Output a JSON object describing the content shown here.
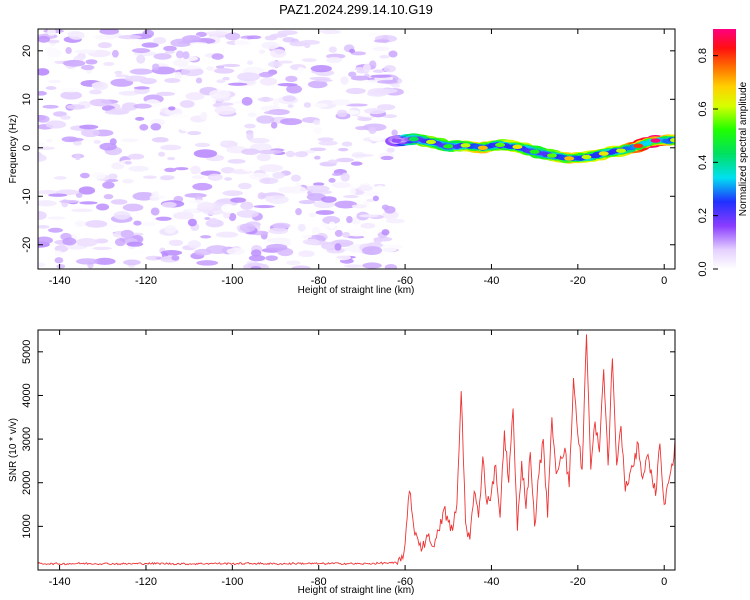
{
  "figure": {
    "title": "PAZ1.2024.299.14.10.G19"
  },
  "chart_data": [
    {
      "type": "heatmap",
      "title": "PAZ1.2024.299.14.10.G19",
      "xlabel": "Height of straight line (km)",
      "ylabel": "Frequency (Hz)",
      "xlim": [
        -145,
        2.5
      ],
      "ylim": [
        -25,
        24.5
      ],
      "xticks": [
        -140,
        -120,
        -100,
        -80,
        -60,
        -40,
        -20,
        0
      ],
      "yticks": [
        -20,
        -10,
        0,
        10,
        20
      ],
      "colorbar": {
        "label": "Normalized spectral amplitude",
        "range": [
          0,
          0.9
        ],
        "ticks": [
          0.0,
          0.2,
          0.4,
          0.6,
          0.8
        ],
        "tick_labels": [
          "0.0",
          "0.2",
          "0.4",
          "0.6",
          "0.8"
        ],
        "colormap": "rainbow (white → violet → blue → cyan → green → yellow → orange → red → magenta)"
      },
      "regions": [
        {
          "name": "noise",
          "x_range": [
            -145,
            -62
          ],
          "frequency_range": [
            -25,
            24.5
          ],
          "amplitude_range": [
            0.0,
            0.12
          ]
        }
      ],
      "ridge": {
        "x": [
          -62,
          -58,
          -54,
          -50,
          -46,
          -42,
          -38,
          -34,
          -30,
          -26,
          -22,
          -18,
          -14,
          -10,
          -6,
          -2,
          2.5
        ],
        "frequency": [
          1.5,
          1.8,
          1.2,
          0.3,
          0.5,
          0.0,
          0.6,
          0.2,
          -0.8,
          -1.6,
          -2.2,
          -1.9,
          -1.2,
          -0.6,
          0.4,
          1.5,
          1.6
        ],
        "amplitude": [
          0.15,
          0.45,
          0.6,
          0.5,
          0.6,
          0.7,
          0.55,
          0.65,
          0.5,
          0.55,
          0.7,
          0.6,
          0.65,
          0.6,
          0.8,
          0.9,
          0.6
        ]
      }
    },
    {
      "type": "line",
      "xlabel": "Height of straight line (km)",
      "ylabel": "SNR (10 * v/v)",
      "xlim": [
        -145,
        2.5
      ],
      "ylim": [
        0,
        5500
      ],
      "xticks": [
        -140,
        -120,
        -100,
        -80,
        -60,
        -40,
        -20,
        0
      ],
      "yticks": [
        1000,
        2000,
        3000,
        4000,
        5000
      ],
      "color": "#ee3333",
      "series": [
        {
          "x": [
            -145,
            -140,
            -135,
            -130,
            -125,
            -120,
            -115,
            -110,
            -105,
            -100,
            -95,
            -90,
            -85,
            -80,
            -75,
            -70,
            -65,
            -62,
            -61,
            -60,
            -59.5,
            -59,
            -58,
            -57,
            -56,
            -55,
            -54,
            -53,
            -52,
            -51,
            -50,
            -49,
            -48,
            -47,
            -46,
            -45,
            -44,
            -43,
            -42,
            -41,
            -40,
            -39,
            -38,
            -37,
            -36,
            -35,
            -34,
            -33,
            -32,
            -31,
            -30,
            -29,
            -28,
            -27,
            -26,
            -25,
            -24,
            -23,
            -22,
            -21,
            -20,
            -19,
            -18,
            -17,
            -16,
            -15,
            -14,
            -13,
            -12,
            -11,
            -10,
            -9,
            -8,
            -7,
            -6,
            -5,
            -4,
            -3,
            -2,
            -1,
            0,
            1,
            2,
            2.5
          ],
          "y": [
            150,
            140,
            150,
            145,
            140,
            150,
            145,
            140,
            150,
            145,
            150,
            140,
            150,
            145,
            150,
            140,
            160,
            160,
            200,
            600,
            1200,
            1800,
            1000,
            700,
            500,
            800,
            600,
            700,
            900,
            1400,
            1100,
            900,
            1500,
            4100,
            1100,
            700,
            1800,
            1200,
            2600,
            1500,
            1800,
            2400,
            1200,
            3200,
            2000,
            3700,
            900,
            2500,
            1400,
            2700,
            1000,
            2200,
            3000,
            1200,
            3500,
            2200,
            2600,
            2800,
            1900,
            4400,
            3100,
            2300,
            5400,
            2300,
            3400,
            2700,
            4600,
            2400,
            4850,
            2400,
            3300,
            1800,
            2200,
            2400,
            2900,
            2100,
            2600,
            2300,
            1700,
            2900,
            1500,
            2000,
            2400,
            3000
          ]
        }
      ]
    }
  ]
}
